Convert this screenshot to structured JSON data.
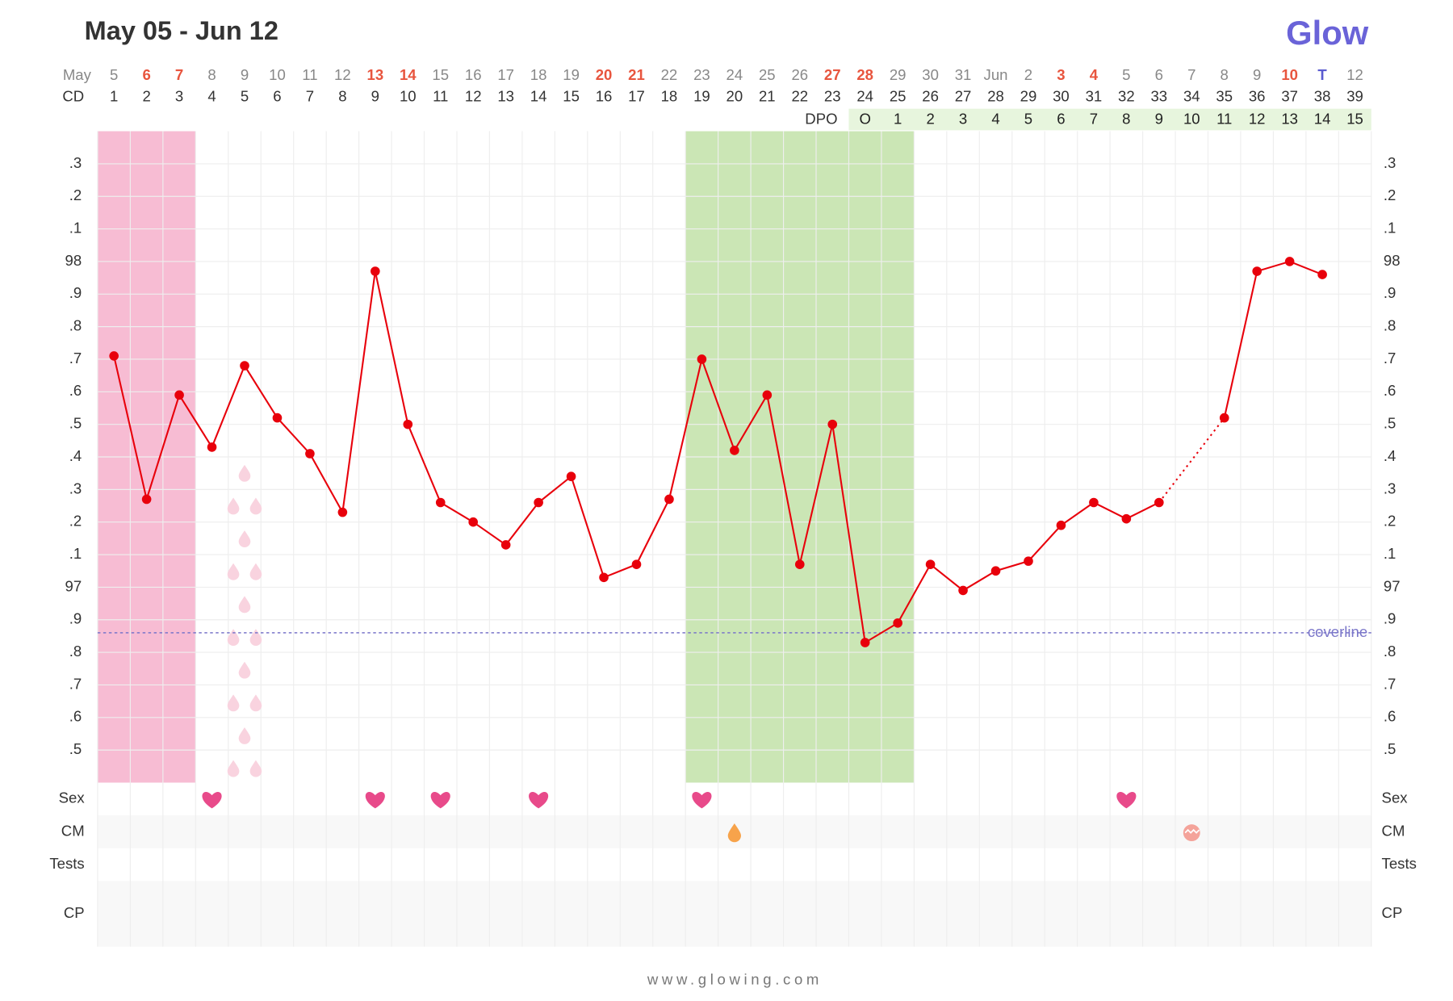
{
  "chart_data": {
    "type": "line",
    "title": "May 05 - Jun 12",
    "date_label": "May",
    "dates": [
      "5",
      "6",
      "7",
      "8",
      "9",
      "10",
      "11",
      "12",
      "13",
      "14",
      "15",
      "16",
      "17",
      "18",
      "19",
      "20",
      "21",
      "22",
      "23",
      "24",
      "25",
      "26",
      "27",
      "28",
      "29",
      "30",
      "31",
      "Jun",
      "2",
      "3",
      "4",
      "5",
      "6",
      "7",
      "8",
      "9",
      "10",
      "T",
      "12"
    ],
    "date_colors": [
      "#888888",
      "#e8553e",
      "#e8553e",
      "#888888",
      "#888888",
      "#888888",
      "#888888",
      "#888888",
      "#e8553e",
      "#e8553e",
      "#888888",
      "#888888",
      "#888888",
      "#888888",
      "#888888",
      "#e8553e",
      "#e8553e",
      "#888888",
      "#888888",
      "#888888",
      "#888888",
      "#888888",
      "#e8553e",
      "#e8553e",
      "#888888",
      "#888888",
      "#888888",
      "#888888",
      "#888888",
      "#e8553e",
      "#e8553e",
      "#888888",
      "#888888",
      "#888888",
      "#888888",
      "#888888",
      "#e8553e",
      "#5a5bd0",
      "#888888"
    ],
    "cd_label": "CD",
    "categories": [
      "1",
      "2",
      "3",
      "4",
      "5",
      "6",
      "7",
      "8",
      "9",
      "10",
      "11",
      "12",
      "13",
      "14",
      "15",
      "16",
      "17",
      "18",
      "19",
      "20",
      "21",
      "22",
      "23",
      "24",
      "25",
      "26",
      "27",
      "28",
      "29",
      "30",
      "31",
      "32",
      "33",
      "34",
      "35",
      "36",
      "37",
      "38",
      "39"
    ],
    "dpo_label": "DPO",
    "dpo": [
      null,
      null,
      null,
      null,
      null,
      null,
      null,
      null,
      null,
      null,
      null,
      null,
      null,
      null,
      null,
      null,
      null,
      null,
      null,
      null,
      null,
      null,
      null,
      "O",
      "1",
      "2",
      "3",
      "4",
      "5",
      "6",
      "7",
      "8",
      "9",
      "10",
      "11",
      "12",
      "13",
      "14",
      "15"
    ],
    "dpo_color": "#e7f5dd",
    "color": "#e8000b",
    "values": [
      97.71,
      97.27,
      97.59,
      97.43,
      97.68,
      97.52,
      97.41,
      97.23,
      97.97,
      97.5,
      97.26,
      97.2,
      97.13,
      97.26,
      97.34,
      97.03,
      97.07,
      97.27,
      97.7,
      97.42,
      97.59,
      97.07,
      97.5,
      96.83,
      96.89,
      97.07,
      96.99,
      97.05,
      97.08,
      97.19,
      97.26,
      97.21,
      97.26,
      null,
      97.52,
      97.97,
      98.0,
      97.96,
      null
    ],
    "ylim": [
      96.4,
      98.4
    ],
    "yticks": [
      {
        "value": 96.5,
        "label": ".5"
      },
      {
        "value": 96.6,
        "label": ".6"
      },
      {
        "value": 96.7,
        "label": ".7"
      },
      {
        "value": 96.8,
        "label": ".8"
      },
      {
        "value": 96.9,
        "label": ".9"
      },
      97,
      {
        "value": 97.1,
        "label": ".1"
      },
      {
        "value": 97.2,
        "label": ".2"
      },
      {
        "value": 97.3,
        "label": ".3"
      },
      {
        "value": 97.4,
        "label": ".4"
      },
      {
        "value": 97.5,
        "label": ".5"
      },
      {
        "value": 97.6,
        "label": ".6"
      },
      {
        "value": 97.7,
        "label": ".7"
      },
      {
        "value": 97.8,
        "label": ".8"
      },
      {
        "value": 97.9,
        "label": ".9"
      },
      98,
      {
        "value": 98.1,
        "label": ".1"
      },
      {
        "value": 98.2,
        "label": ".2"
      },
      {
        "value": 98.3,
        "label": ".3"
      }
    ],
    "grid": true,
    "coverline": {
      "value": 96.86,
      "label": "coverline",
      "color": "#7a76c9"
    },
    "period": {
      "start": 1,
      "end": 3,
      "color": "#f7bcd3"
    },
    "fertile_window": {
      "start": 19,
      "end": 25,
      "color": "#cbe6b5"
    },
    "spotting": {
      "day": 5,
      "color": "#f9d3df"
    },
    "rows": [
      {
        "label": "Sex",
        "events": [
          {
            "day": 4,
            "icon": "heart"
          },
          {
            "day": 9,
            "icon": "heart"
          },
          {
            "day": 11,
            "icon": "heart"
          },
          {
            "day": 14,
            "icon": "heart"
          },
          {
            "day": 19,
            "icon": "heart"
          },
          {
            "day": 32,
            "icon": "heart"
          }
        ]
      },
      {
        "label": "CM",
        "events": [
          {
            "day": 20,
            "icon": "drop"
          },
          {
            "day": 34,
            "icon": "egg"
          }
        ]
      },
      {
        "label": "Tests",
        "events": []
      },
      {
        "label": "CP",
        "events": []
      }
    ]
  },
  "logo": "Glow",
  "footer": "www.glowing.com"
}
